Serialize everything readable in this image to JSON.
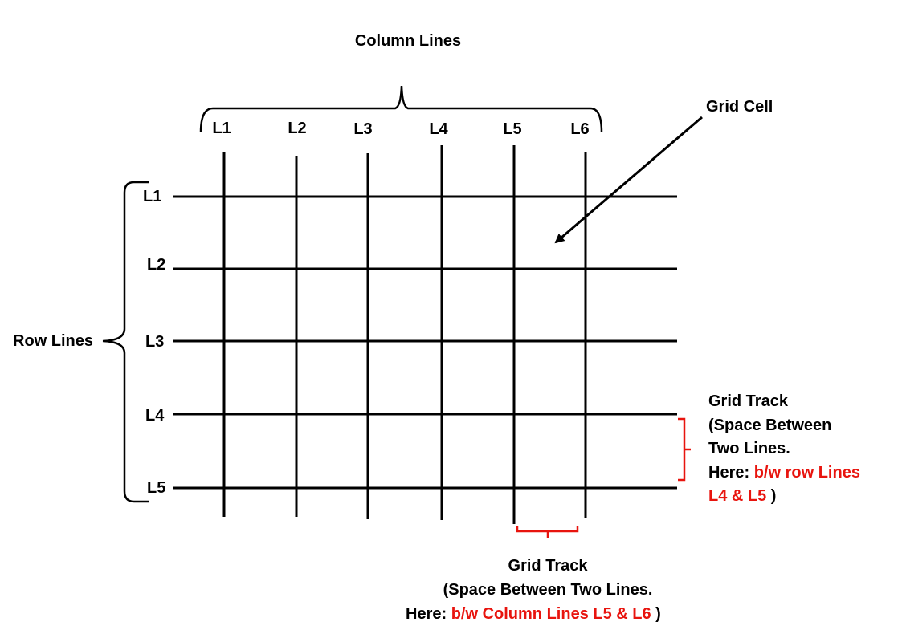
{
  "colors": {
    "ink": "#000000",
    "accent": "#e8140e",
    "background": "#ffffff"
  },
  "column_lines": {
    "title": "Column Lines",
    "labels": [
      "L1",
      "L2",
      "L3",
      "L4",
      "L5",
      "L6"
    ]
  },
  "row_lines": {
    "title": "Row Lines",
    "labels": [
      "L1",
      "L2",
      "L3",
      "L4",
      "L5"
    ]
  },
  "grid_cell": {
    "label": "Grid Cell"
  },
  "row_track": {
    "line1": "Grid Track",
    "line2": "(Space Between",
    "line3": "Two Lines.",
    "line4_prefix": "Here: ",
    "line4_highlight": "b/w row Lines",
    "line5_highlight": "L4 & L5",
    "line5_suffix": " )"
  },
  "column_track": {
    "line1": "Grid Track",
    "line2": "(Space Between Two Lines.",
    "line3_prefix": "Here: ",
    "line3_highlight": "b/w Column Lines L5 & L6",
    "line3_suffix": " )"
  }
}
